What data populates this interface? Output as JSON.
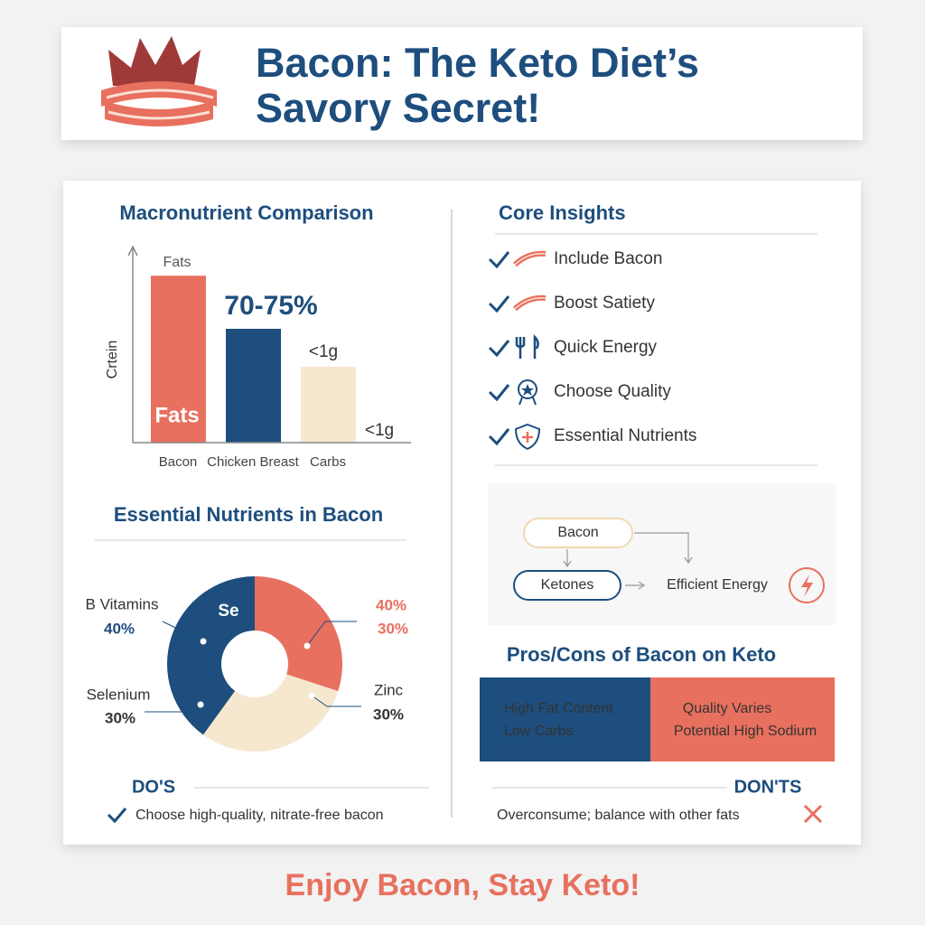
{
  "header": {
    "title": "Bacon: The Keto Diet’s Savory Secret!"
  },
  "chart_data": [
    {
      "type": "bar",
      "title": "Macronutrient Comparison",
      "y_label": "Crtein",
      "categories": [
        "Bacon",
        "Chicken Breast",
        "Carbs"
      ],
      "values": [
        88,
        60,
        40
      ],
      "colors": [
        "#e8705e",
        "#1d4e7e",
        "#f6e7cf"
      ],
      "ylim": [
        0,
        100
      ],
      "annotations": [
        "Fats",
        "Fats",
        "70-75%",
        "<1g",
        "<1g"
      ]
    },
    {
      "type": "pie",
      "title": "Essential Nutrients in Bacon",
      "categories": [
        "B Vitamins",
        "Selenium",
        "Zinc"
      ],
      "values": [
        40,
        30,
        30
      ],
      "value_labels": [
        "40%",
        "30%",
        "30%"
      ],
      "colors": [
        "#1d4e7e",
        "#f6e7cf",
        "#e8705e"
      ],
      "annotations": [
        "Se",
        "40%",
        "30%"
      ]
    }
  ],
  "core_insights": {
    "title": "Core Insights",
    "items": [
      "Include Bacon",
      "Boost Satiety",
      "Quick Energy",
      "Choose Quality",
      "Essential Nutrients"
    ]
  },
  "flow": {
    "nodes": [
      "Bacon",
      "Ketones",
      "Efficient Energy"
    ]
  },
  "pros_cons": {
    "title": "Pros/Cons of Bacon on Keto",
    "pros": [
      "High Fat Content",
      "Low Carbs"
    ],
    "cons": [
      "Quality Varies",
      "Potential High Sodium"
    ]
  },
  "dos": {
    "title": "DO'S",
    "items": [
      "Choose high-quality, nitrate-free bacon"
    ]
  },
  "donts": {
    "title": "DON'TS",
    "items": [
      "Overconsume; balance with other fats"
    ]
  },
  "footer": {
    "text": "Enjoy Bacon, Stay Keto!"
  }
}
